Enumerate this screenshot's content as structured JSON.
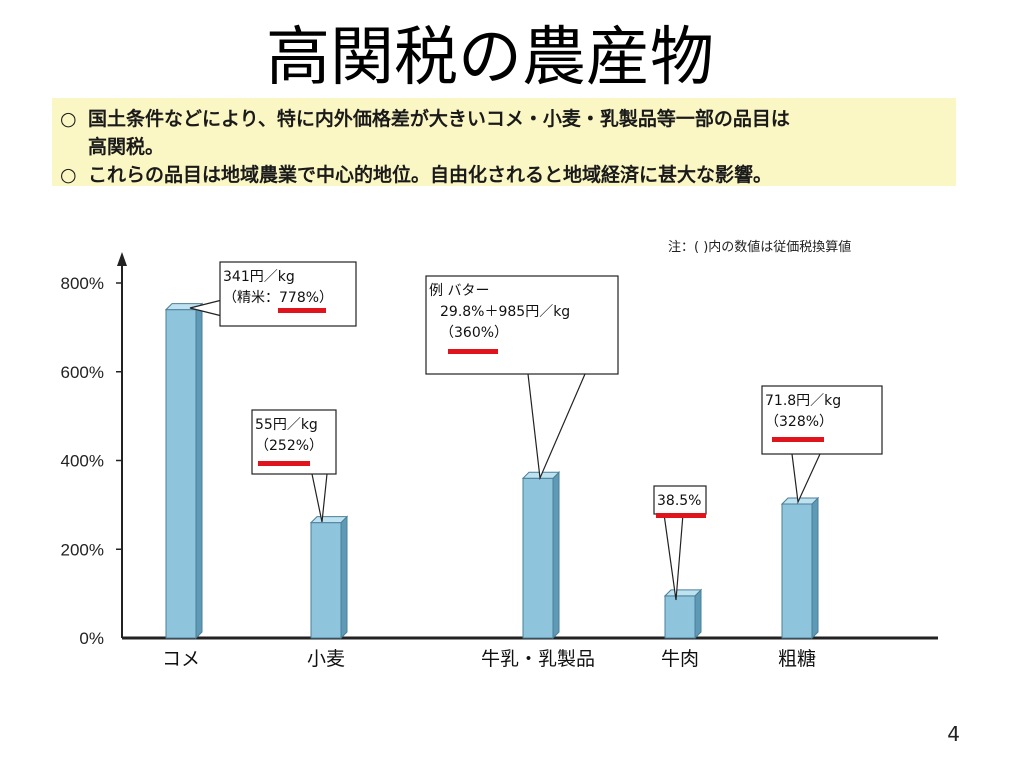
{
  "title": "高関税の農産物",
  "summary": [
    {
      "bullet": "○",
      "text": "国土条件などにより、特に内外価格差が大きいコメ・小麦・乳製品等一部の品目は"
    },
    {
      "bullet": "",
      "text": "高関税。"
    },
    {
      "bullet": "○",
      "text": "これらの品目は地域農業で中心的地位。自由化されると地域経済に甚大な影響。"
    }
  ],
  "note": "注：( )内の数値は従価税換算値",
  "page_number": "4",
  "colors": {
    "bar": "#8fc5dc",
    "bar_side": "#5e9ab6",
    "bar_top": "#bfe2f0",
    "highlight_box": "#fbf7c4",
    "underline": "#e0141c"
  },
  "chart_data": {
    "type": "bar",
    "categories": [
      "コメ",
      "小麦",
      "牛乳・乳製品",
      "牛肉",
      "粗糖"
    ],
    "values": [
      778,
      252,
      360,
      38.5,
      328
    ],
    "ylim": [
      0,
      800
    ],
    "yticks": [
      "0%",
      "200%",
      "400%",
      "600%",
      "800%"
    ],
    "callouts": [
      {
        "lines": [
          "341円／kg",
          "（精米：778%）"
        ]
      },
      {
        "lines": [
          "55円／kg",
          "（252%）"
        ]
      },
      {
        "lines": [
          "例 バター",
          "29.8%＋985円／kg",
          "（360%）"
        ]
      },
      {
        "lines": [
          "38.5%"
        ]
      },
      {
        "lines": [
          "71.8円／kg",
          "（328%）"
        ]
      }
    ]
  }
}
